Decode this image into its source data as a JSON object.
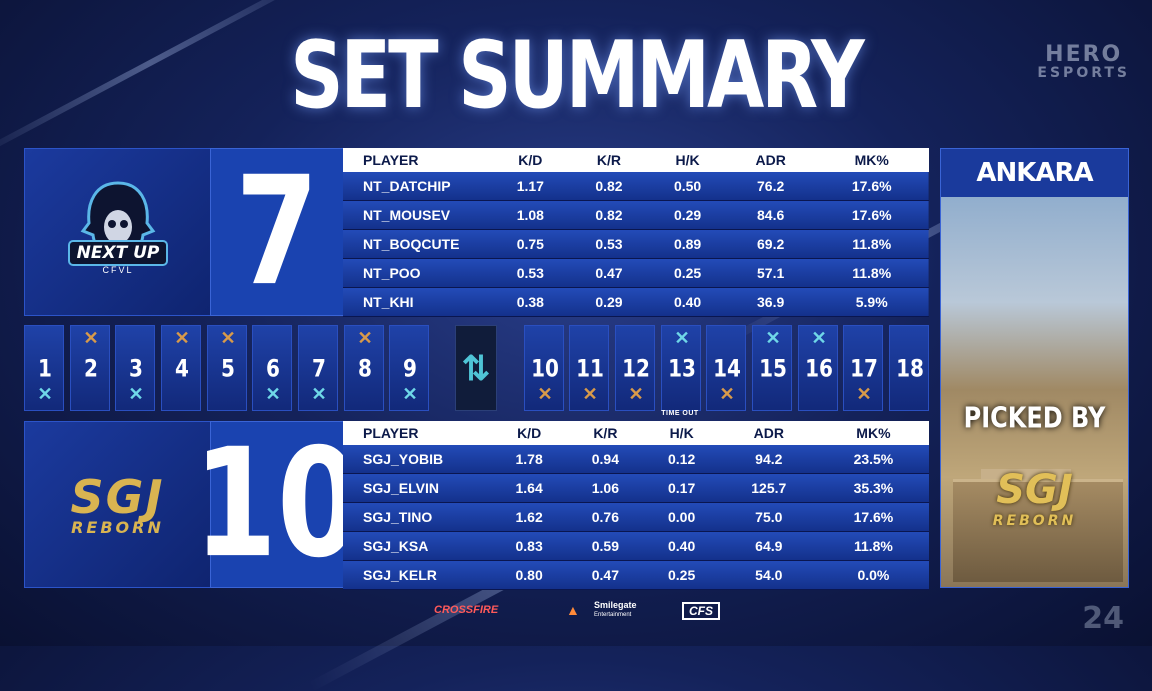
{
  "title": "SET SUMMARY",
  "brand": {
    "line1": "HERO",
    "line2": "ESPORTS"
  },
  "columns": [
    "PLAYER",
    "K/D",
    "K/R",
    "H/K",
    "ADR",
    "MK%"
  ],
  "team1": {
    "logo_text": "NEXT UP",
    "logo_sub": "CFVL",
    "score": "7",
    "players": [
      {
        "name": "NT_DATCHIP",
        "kd": "1.17",
        "kr": "0.82",
        "hk": "0.50",
        "adr": "76.2",
        "mk": "17.6%"
      },
      {
        "name": "NT_MOUSEV",
        "kd": "1.08",
        "kr": "0.82",
        "hk": "0.29",
        "adr": "84.6",
        "mk": "17.6%"
      },
      {
        "name": "NT_BOQCUTE",
        "kd": "0.75",
        "kr": "0.53",
        "hk": "0.89",
        "adr": "69.2",
        "mk": "11.8%"
      },
      {
        "name": "NT_POO",
        "kd": "0.53",
        "kr": "0.47",
        "hk": "0.25",
        "adr": "57.1",
        "mk": "11.8%"
      },
      {
        "name": "NT_KHI",
        "kd": "0.38",
        "kr": "0.29",
        "hk": "0.40",
        "adr": "36.9",
        "mk": "5.9%"
      }
    ]
  },
  "team2": {
    "logo_text": "SGJ",
    "logo_sub": "REBORN",
    "score": "10",
    "players": [
      {
        "name": "SGJ_YOBIB",
        "kd": "1.78",
        "kr": "0.94",
        "hk": "0.12",
        "adr": "94.2",
        "mk": "23.5%"
      },
      {
        "name": "SGJ_ELVIN",
        "kd": "1.64",
        "kr": "1.06",
        "hk": "0.17",
        "adr": "125.7",
        "mk": "35.3%"
      },
      {
        "name": "SGJ_TINO",
        "kd": "1.62",
        "kr": "0.76",
        "hk": "0.00",
        "adr": "75.0",
        "mk": "17.6%"
      },
      {
        "name": "SGJ_KSA",
        "kd": "0.83",
        "kr": "0.59",
        "hk": "0.40",
        "adr": "64.9",
        "mk": "11.8%"
      },
      {
        "name": "SGJ_KELR",
        "kd": "0.80",
        "kr": "0.47",
        "hk": "0.25",
        "adr": "54.0",
        "mk": "0.0%"
      }
    ]
  },
  "rounds": [
    {
      "num": "1",
      "icon": "bottom-cyan"
    },
    {
      "num": "2",
      "icon": "top-gold"
    },
    {
      "num": "3",
      "icon": "bottom-cyan"
    },
    {
      "num": "4",
      "icon": "top-gold"
    },
    {
      "num": "5",
      "icon": "top-gold"
    },
    {
      "num": "6",
      "icon": "bottom-cyan"
    },
    {
      "num": "7",
      "icon": "bottom-cyan"
    },
    {
      "num": "8",
      "icon": "top-gold"
    },
    {
      "num": "9",
      "icon": "bottom-cyan"
    },
    {
      "num": "10",
      "icon": "bottom-gold"
    },
    {
      "num": "11",
      "icon": "bottom-gold"
    },
    {
      "num": "12",
      "icon": "bottom-gold"
    },
    {
      "num": "13",
      "icon": "top-cyan"
    },
    {
      "num": "14",
      "icon": "bottom-gold"
    },
    {
      "num": "15",
      "icon": "top-cyan"
    },
    {
      "num": "16",
      "icon": "top-cyan"
    },
    {
      "num": "17",
      "icon": "bottom-gold"
    },
    {
      "num": "18",
      "icon": "none"
    }
  ],
  "timeout_label": "TIME OUT",
  "map": {
    "name": "ANKARA",
    "picked_label": "PICKED BY",
    "picked_team": "SGJ",
    "picked_sub": "REBORN"
  },
  "sponsors": [
    "CROSSFIRE",
    "Smilegate",
    "Entertainment",
    "CFS"
  ],
  "watermark": "24",
  "colors": {
    "team1_icon": "#6fd7e8",
    "team2_icon": "#d89a4a",
    "panel_blue": "#1a43b0"
  }
}
